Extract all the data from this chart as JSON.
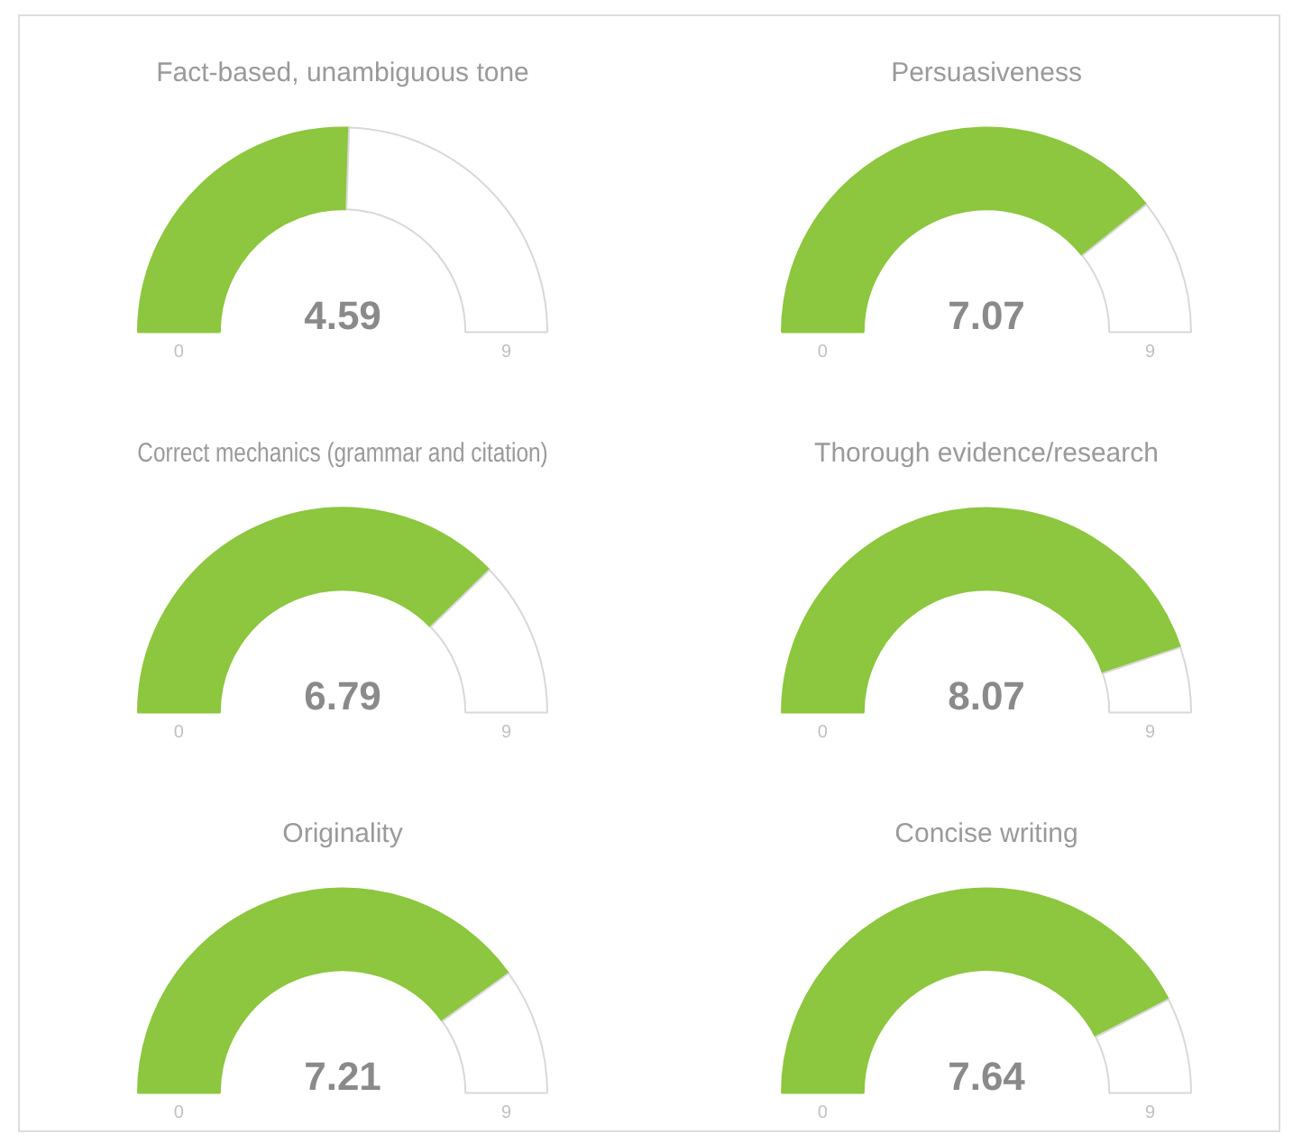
{
  "chart_data": [
    {
      "type": "donut",
      "title": "Fact-based, unambiguous tone",
      "categories": [
        null,
        null
      ],
      "values": [
        4.59,
        4.41
      ],
      "colors": [
        "#8dc63f",
        "#ffffff"
      ],
      "value_labels": [
        "4.59",
        null
      ],
      "annotations": [
        "0",
        "9"
      ]
    },
    {
      "type": "donut",
      "title": "Persuasiveness",
      "categories": [
        null,
        null
      ],
      "values": [
        7.07,
        1.93
      ],
      "colors": [
        "#8dc63f",
        "#ffffff"
      ],
      "value_labels": [
        "7.07",
        null
      ],
      "annotations": [
        "0",
        "9"
      ]
    },
    {
      "type": "donut",
      "title": "Correct mechanics (grammar and citation)",
      "categories": [
        null,
        null
      ],
      "values": [
        6.79,
        2.21
      ],
      "colors": [
        "#8dc63f",
        "#ffffff"
      ],
      "value_labels": [
        "6.79",
        null
      ],
      "annotations": [
        "0",
        "9"
      ]
    },
    {
      "type": "donut",
      "title": "Thorough evidence/research",
      "categories": [
        null,
        null
      ],
      "values": [
        8.07,
        0.93
      ],
      "colors": [
        "#8dc63f",
        "#ffffff"
      ],
      "value_labels": [
        "8.07",
        null
      ],
      "annotations": [
        "0",
        "9"
      ]
    },
    {
      "type": "donut",
      "title": "Originality",
      "categories": [
        null,
        null
      ],
      "values": [
        7.21,
        1.79
      ],
      "colors": [
        "#8dc63f",
        "#ffffff"
      ],
      "value_labels": [
        "7.21",
        null
      ],
      "annotations": [
        "0",
        "9"
      ]
    },
    {
      "type": "donut",
      "title": "Concise writing",
      "categories": [
        null,
        null
      ],
      "values": [
        7.64,
        1.36
      ],
      "colors": [
        "#8dc63f",
        "#ffffff"
      ],
      "value_labels": [
        "7.64",
        null
      ],
      "annotations": [
        "0",
        "9"
      ]
    }
  ]
}
